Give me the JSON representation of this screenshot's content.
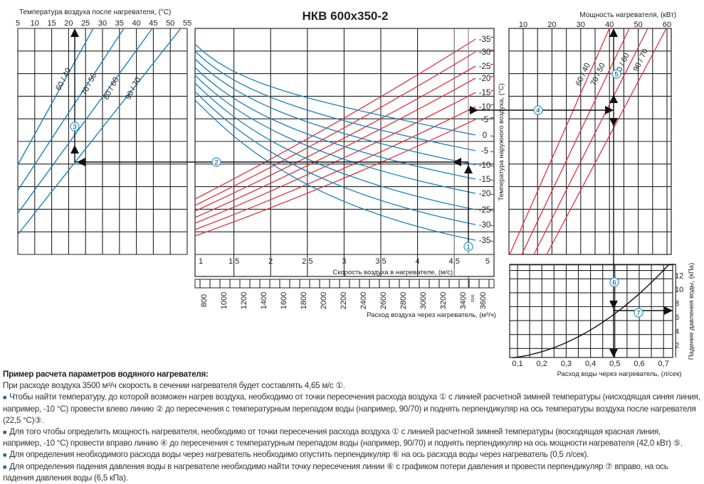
{
  "title": "НКВ 600x350-2",
  "colors": {
    "red": "#e3323c",
    "blue": "#1c82b6",
    "grid": "#222222",
    "marker": "#1a9ad6"
  },
  "chart_data": [
    {
      "id": "outlet-temp",
      "type": "line",
      "title": "Температура воздуха после нагревателя, (°C)",
      "x_ticks": [
        "5",
        "10",
        "15",
        "20",
        "25",
        "30",
        "35",
        "40",
        "45",
        "50",
        "55"
      ],
      "xlim": [
        5,
        55
      ],
      "series": [
        {
          "name": "60 / 40",
          "color": "blue"
        },
        {
          "name": "70 / 50",
          "color": "blue"
        },
        {
          "name": "80 / 60",
          "color": "blue"
        },
        {
          "name": "90 / 70",
          "color": "blue"
        }
      ],
      "example_value": 22.5
    },
    {
      "id": "air-speed",
      "type": "line",
      "y_label": "Температура наружного воздуха, (°C)",
      "x_label": "Скорость воздуха в нагревателе, (м/с)",
      "x_ticks": [
        "1",
        "1,5",
        "2",
        "2,5",
        "3",
        "3,5",
        "4",
        "4,5",
        "5"
      ],
      "xlim": [
        1,
        5
      ],
      "red_series": [
        "-35",
        "-30",
        "-25",
        "-20",
        "-15",
        "-10",
        "-5"
      ],
      "blue_series": [
        "0",
        "-5",
        "-10",
        "-15",
        "-20",
        "-25",
        "-30",
        "-35"
      ],
      "flow_label": "Расход воздуха через нагреватель, (м³/ч)",
      "flow_ticks": [
        "800",
        "1000",
        "1200",
        "1400",
        "1600",
        "1800",
        "2000",
        "2200",
        "2400",
        "2600",
        "2800",
        "3000",
        "3200",
        "3400",
        "3600"
      ],
      "flow_example": "3500",
      "example_speed": 4.65
    },
    {
      "id": "power",
      "type": "line",
      "title": "Мощность нагревателя, (кВт)",
      "x_ticks": [
        "10",
        "20",
        "30",
        "40",
        "50",
        "60"
      ],
      "xlim": [
        5,
        61.5
      ],
      "series": [
        {
          "name": "60 / 40",
          "color": "red"
        },
        {
          "name": "70 / 50",
          "color": "red"
        },
        {
          "name": "80 / 60",
          "color": "red"
        },
        {
          "name": "90 / 70",
          "color": "red"
        }
      ],
      "example_value": 42.0
    },
    {
      "id": "pressure-drop",
      "type": "line",
      "x_label": "Расход воды через нагреватель, (л/сек)",
      "y_label": "Падение давления воды, (кПа)",
      "x_ticks": [
        "0,1",
        "0,2",
        "0,3",
        "0,4",
        "0,5",
        "0,6",
        "0,7"
      ],
      "y_ticks": [
        "2",
        "4",
        "6",
        "8",
        "10",
        "12"
      ],
      "xlim": [
        0.07,
        0.75
      ],
      "ylim": [
        0,
        13.5
      ],
      "curve": {
        "x": [
          0.1,
          0.2,
          0.3,
          0.4,
          0.5,
          0.6,
          0.7,
          0.75
        ],
        "y": [
          0.26,
          1.04,
          2.34,
          4.16,
          6.5,
          9.36,
          12.74,
          13.6
        ]
      },
      "example": {
        "x": 0.5,
        "y": 6.5
      }
    }
  ],
  "markers": [
    "1",
    "2",
    "3",
    "4",
    "5",
    "6",
    "7"
  ],
  "notes": {
    "heading": "Пример расчета параметров водяного нагревателя:",
    "intro": "При расходе воздуха 3500 м³/ч скорость в сечении нагревателя будет составлять 4,65 м/с ①.",
    "bullets": [
      "Чтобы найти температуру, до которой возможен нагрев воздуха, необходимо от точки пересечения расхода воздуха ① с линией расчетной зимней температуры (нисходящая синяя линия, например, -10 °C) провести влево линию ② до пересечения с температурным перепадом воды (например, 90/70) и поднять перпендикуляр на ось температуры воздуха после нагревателя (22,5 °C)③.",
      "Для того чтобы определить мощность нагревателя, необходимо от точки пересечения расхода воздуха ① с линией расчетной зимней температуры (восходящая красная линия, например, -10 °C) провести вправо линию ④ до пересечения с температурным перепадом воды (например, 90/70) и поднять перпендикуляр на ось мощности нагревателя (42,0 кВт) ⑤.",
      "Для определения необходимого расхода воды через нагреватель необходимо опустить перпендикуляр ⑥ на ось расхода воды через нагреватель (0,5 л/сек).",
      "Для определения падения давления воды в нагревателе необходимо найти точку пересечения линии ⑥ с графиком потери давления и провести перпендикуляр ⑦ вправо, на ось падения давления воды (6,5 кПа)."
    ]
  }
}
